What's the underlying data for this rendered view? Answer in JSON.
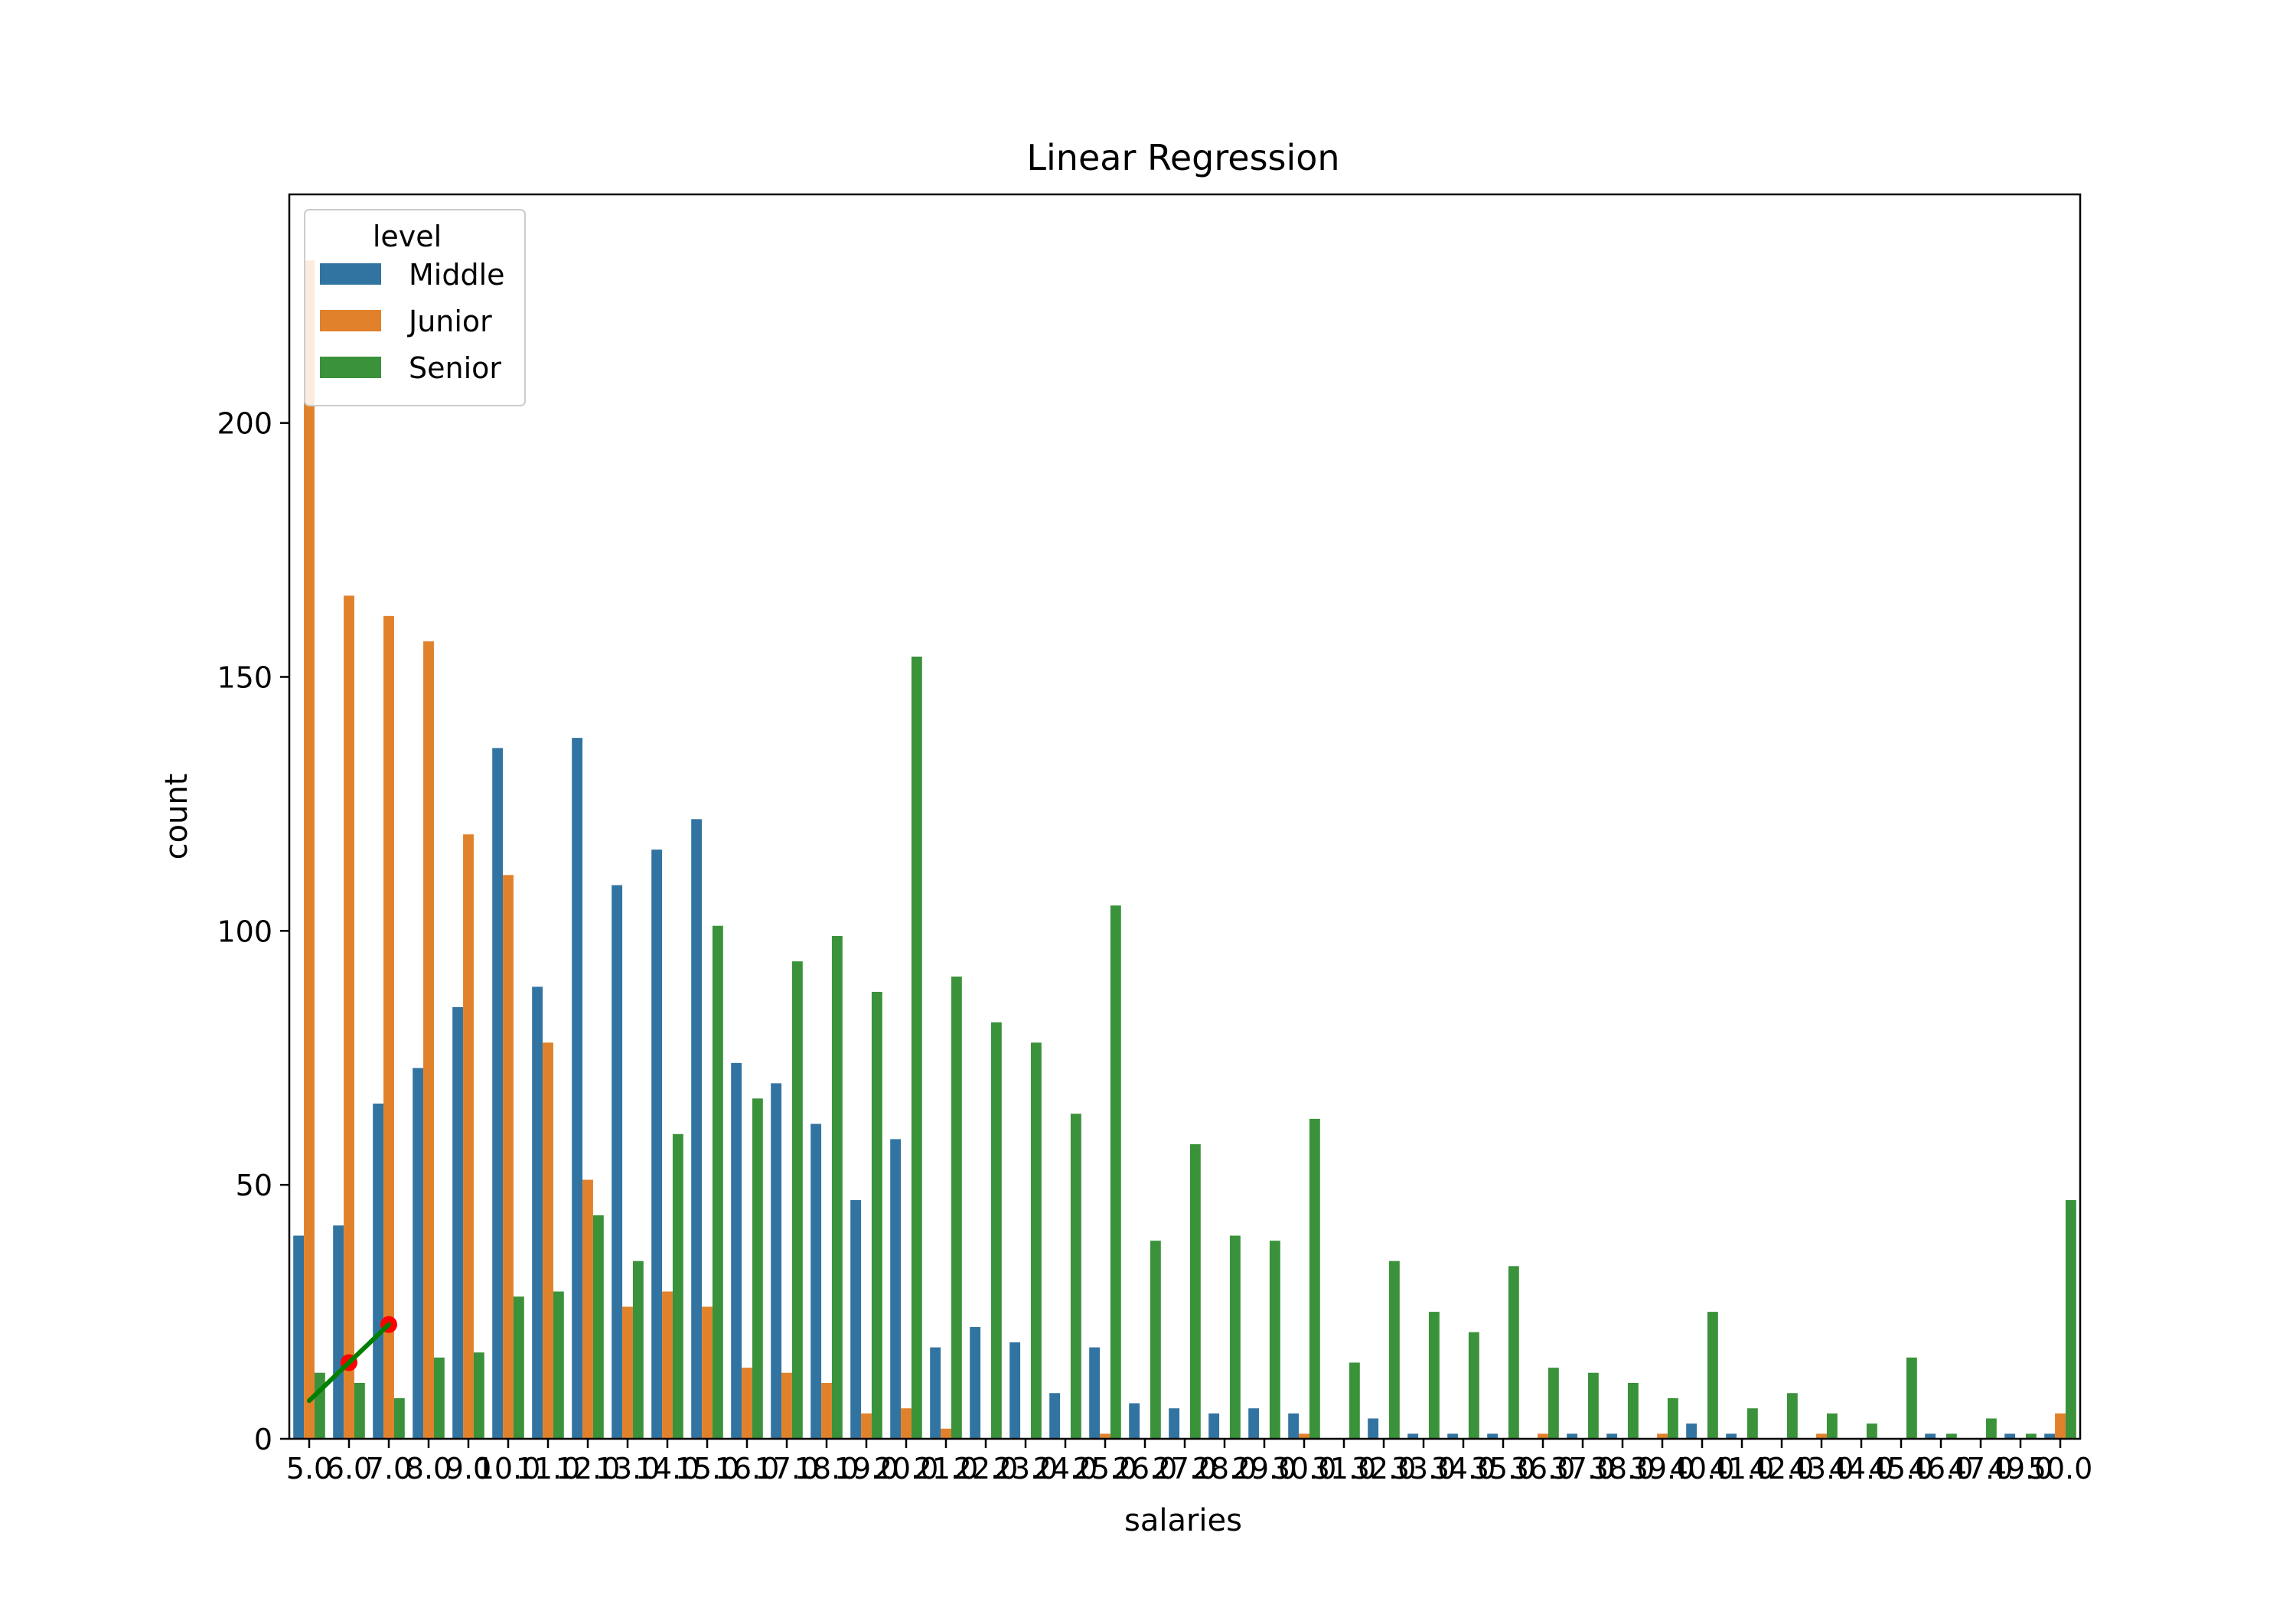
{
  "chart_data": {
    "type": "bar",
    "title": "Linear Regression",
    "xlabel": "salaries",
    "ylabel": "count",
    "ylim": [
      0,
      245
    ],
    "yticks": [
      0,
      50,
      100,
      150,
      200
    ],
    "grid": false,
    "legend": {
      "title": "level",
      "placement": "top-left"
    },
    "categories": [
      "5.0",
      "6.0",
      "7.0",
      "8.0",
      "9.0",
      "10.0",
      "11.0",
      "12.0",
      "13.0",
      "14.0",
      "15.0",
      "16.0",
      "17.0",
      "18.0",
      "19.0",
      "20.0",
      "21.0",
      "22.0",
      "23.0",
      "24.0",
      "25.0",
      "26.0",
      "27.0",
      "28.0",
      "29.0",
      "30.0",
      "31.0",
      "32.0",
      "33.0",
      "34.0",
      "35.0",
      "36.0",
      "37.0",
      "38.0",
      "39.0",
      "40.0",
      "41.0",
      "42.0",
      "43.0",
      "44.0",
      "45.0",
      "46.0",
      "47.0",
      "49.0",
      "50.0"
    ],
    "series": [
      {
        "name": "Middle",
        "color": "#3274a1",
        "values": [
          40,
          42,
          66,
          73,
          85,
          136,
          89,
          138,
          109,
          116,
          122,
          74,
          70,
          62,
          47,
          59,
          18,
          22,
          19,
          9,
          18,
          7,
          6,
          5,
          6,
          5,
          0,
          4,
          1,
          1,
          1,
          0,
          1,
          1,
          0,
          3,
          1,
          0,
          0,
          0,
          0,
          1,
          0,
          1,
          1
        ]
      },
      {
        "name": "Junior",
        "color": "#e1812c",
        "values": [
          232,
          166,
          162,
          157,
          119,
          111,
          78,
          51,
          26,
          29,
          26,
          14,
          13,
          11,
          5,
          6,
          2,
          0,
          0,
          0,
          1,
          0,
          0,
          0,
          0,
          1,
          0,
          0,
          0,
          0,
          0,
          1,
          0,
          0,
          1,
          0,
          0,
          0,
          1,
          0,
          0,
          0,
          0,
          0,
          5
        ]
      },
      {
        "name": "Senior",
        "color": "#3a923a",
        "values": [
          13,
          11,
          8,
          16,
          17,
          28,
          29,
          44,
          35,
          60,
          101,
          67,
          94,
          99,
          88,
          154,
          91,
          82,
          78,
          64,
          105,
          39,
          58,
          40,
          39,
          63,
          15,
          35,
          25,
          21,
          34,
          14,
          13,
          11,
          8,
          25,
          6,
          9,
          5,
          3,
          16,
          1,
          4,
          1,
          47
        ]
      }
    ],
    "overlay": {
      "points": [
        {
          "x": 6.0,
          "y": 15
        },
        {
          "x": 7.0,
          "y": 22.5
        }
      ],
      "point_color": "#ff0000",
      "line": [
        {
          "x": 5.0,
          "y": 7.5
        },
        {
          "x": 7.0,
          "y": 22.5
        }
      ],
      "line_color": "#008000"
    }
  }
}
